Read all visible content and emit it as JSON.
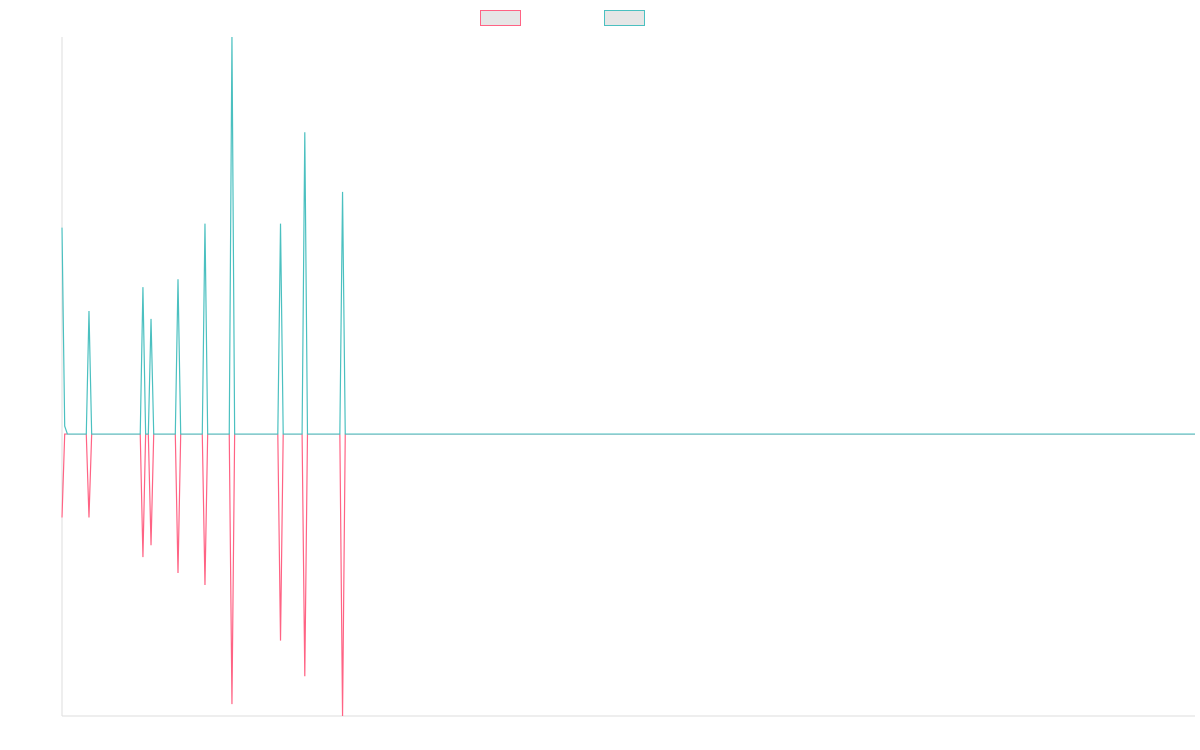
{
  "chart_data": {
    "type": "line",
    "x": [
      0,
      1,
      2,
      9,
      10,
      11,
      29,
      30,
      31,
      32,
      33,
      34,
      42,
      43,
      44,
      52,
      53,
      54,
      62,
      63,
      64,
      80,
      81,
      82,
      89,
      90,
      91,
      103,
      104,
      105,
      420
    ],
    "series": [
      {
        "color": "#ff6384",
        "values": [
          -21,
          0,
          0,
          0,
          -21,
          0,
          0,
          -31,
          0,
          0,
          -28,
          0,
          0,
          -35,
          0,
          0,
          -38,
          0,
          0,
          -68,
          0,
          0,
          -52,
          0,
          0,
          -61,
          0,
          0,
          -71,
          0,
          0
        ]
      },
      {
        "color": "#4bc0c0",
        "values": [
          52,
          2,
          0,
          0,
          31,
          0,
          0,
          37,
          0,
          0,
          29,
          0,
          0,
          39,
          0,
          0,
          53,
          0,
          0,
          100,
          0,
          0,
          53,
          0,
          0,
          76,
          0,
          0,
          61,
          0,
          0
        ]
      }
    ],
    "xlim": [
      0,
      420
    ],
    "ylim": [
      -71,
      100
    ],
    "grid": false
  }
}
